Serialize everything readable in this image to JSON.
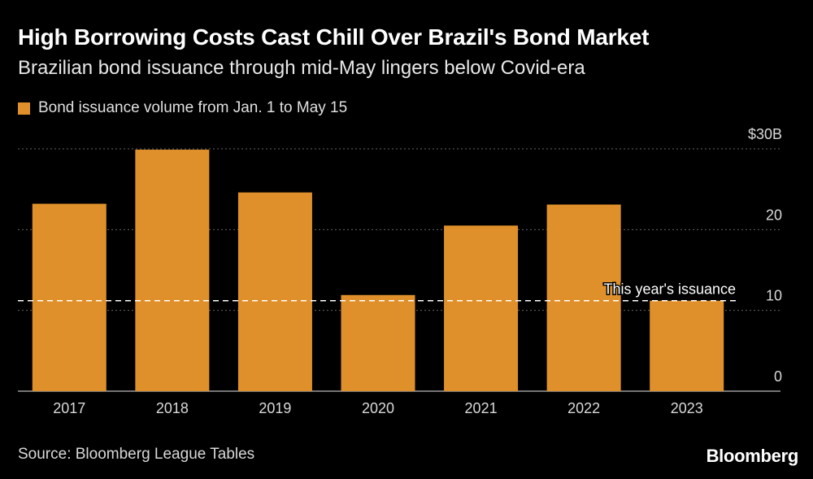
{
  "header": {
    "title": "High Borrowing Costs Cast Chill Over Brazil's Bond Market",
    "subtitle": "Brazilian bond issuance through mid-May lingers below Covid-era"
  },
  "legend": {
    "label": "Bond issuance volume from Jan. 1 to May 15"
  },
  "colors": {
    "bar": "#e0902a",
    "background": "#000000",
    "grid": "#666666",
    "text": "#d9d9d9"
  },
  "footer": {
    "source": "Source: Bloomberg League Tables",
    "brand": "Bloomberg"
  },
  "chart_data": {
    "type": "bar",
    "title": "High Borrowing Costs Cast Chill Over Brazil's Bond Market",
    "xlabel": "",
    "ylabel": "",
    "categories": [
      "2017",
      "2018",
      "2019",
      "2020",
      "2021",
      "2022",
      "2023"
    ],
    "series": [
      {
        "name": "Bond issuance volume from Jan. 1 to May 15",
        "values": [
          23.2,
          29.9,
          24.6,
          11.9,
          20.5,
          23.1,
          11.2
        ]
      }
    ],
    "ylim": [
      0,
      30
    ],
    "yticks": [
      0,
      10,
      20,
      30
    ],
    "ytick_labels": [
      "0",
      "10",
      "20",
      "$30B"
    ],
    "yaxis_side": "right",
    "grid": true,
    "reference_line": {
      "value": 11.2,
      "label": "This year's issuance"
    }
  }
}
